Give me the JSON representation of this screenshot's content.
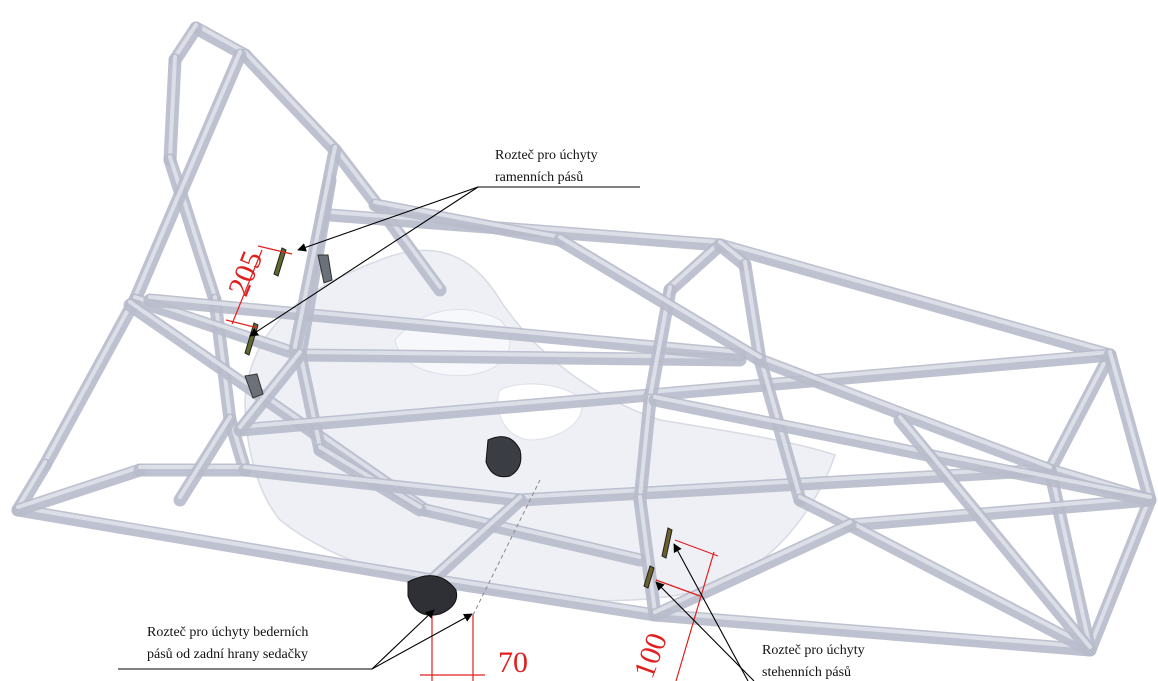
{
  "annotations": {
    "shoulder_label": [
      "Rozteč pro úchyty",
      "ramenních pásů"
    ],
    "lap_label": [
      "Rozteč pro úchyty bederních",
      "pásů od zadní hrany sedačky"
    ],
    "thigh_label": [
      "Rozteč pro úchyty",
      "stehenních pásů"
    ]
  },
  "dimensions": {
    "shoulder": "205",
    "lap": "70",
    "thigh": "100"
  },
  "colors": {
    "tube": "#b8bccb",
    "dimension": "#e0201e",
    "seat": "#eef0f6",
    "leader": "#000000"
  }
}
